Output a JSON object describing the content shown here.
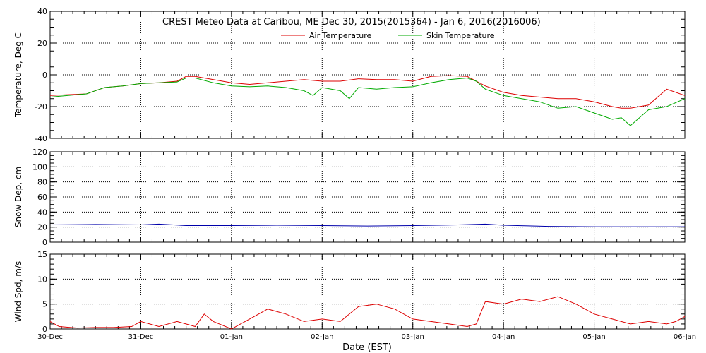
{
  "title": "CREST Meteo Data at Caribou, ME   Dec 30, 2015(2015364) - Jan  6, 2016(2016006)",
  "xlabel": "Date (EST)",
  "colors": {
    "air": "#dd0000",
    "skin": "#00aa00",
    "snow": "#0000aa",
    "wind": "#dd0000"
  },
  "chart_data": [
    {
      "type": "line",
      "x_unit": "days since 2015-12-30 00:00 EST",
      "x_ticks": [
        "30-Dec",
        "31-Dec",
        "01-Jan",
        "02-Jan",
        "03-Jan",
        "04-Jan",
        "05-Jan",
        "06-Jan"
      ],
      "ylabel": "Temperature, Deg C",
      "ylim": [
        -40,
        40
      ],
      "y_ticks": [
        "40",
        "20",
        "0",
        "-20",
        "-40"
      ],
      "grid": true,
      "legend": "top-center",
      "series": [
        {
          "name": "Air Temperature",
          "color": "#dd0000",
          "x": [
            0,
            0.2,
            0.4,
            0.6,
            0.8,
            1.0,
            1.2,
            1.4,
            1.5,
            1.6,
            1.8,
            2.0,
            2.2,
            2.4,
            2.6,
            2.8,
            3.0,
            3.2,
            3.4,
            3.6,
            3.8,
            4.0,
            4.2,
            4.4,
            4.6,
            4.7,
            4.8,
            5.0,
            5.2,
            5.4,
            5.6,
            5.8,
            6.0,
            6.2,
            6.3,
            6.4,
            6.6,
            6.8,
            7.0
          ],
          "values": [
            -13,
            -12.5,
            -12,
            -8,
            -7,
            -5.5,
            -5,
            -4,
            -1,
            -1,
            -3,
            -5,
            -6,
            -5,
            -4,
            -3,
            -4,
            -4,
            -2.5,
            -3,
            -3,
            -4,
            -1,
            -0.5,
            -1,
            -4,
            -7,
            -11,
            -13,
            -14,
            -15,
            -15,
            -17,
            -20,
            -21,
            -21,
            -19,
            -9,
            -13
          ]
        },
        {
          "name": "Skin Temperature",
          "color": "#00aa00",
          "x": [
            0,
            0.2,
            0.4,
            0.6,
            0.8,
            1.0,
            1.2,
            1.4,
            1.5,
            1.6,
            1.8,
            2.0,
            2.2,
            2.4,
            2.6,
            2.8,
            2.9,
            3.0,
            3.2,
            3.3,
            3.4,
            3.6,
            3.8,
            4.0,
            4.2,
            4.4,
            4.6,
            4.7,
            4.8,
            5.0,
            5.2,
            5.4,
            5.6,
            5.8,
            6.0,
            6.2,
            6.3,
            6.4,
            6.6,
            6.8,
            7.0
          ],
          "values": [
            -14,
            -13,
            -12,
            -8,
            -7,
            -5.5,
            -5,
            -4.5,
            -2,
            -2,
            -5,
            -7,
            -7.5,
            -7,
            -8,
            -10,
            -13,
            -8,
            -10,
            -15,
            -8,
            -9,
            -8,
            -7.5,
            -5,
            -3,
            -2,
            -4,
            -9,
            -13,
            -15,
            -17,
            -21,
            -20,
            -24,
            -28,
            -27,
            -32,
            -22,
            -20,
            -15
          ]
        }
      ]
    },
    {
      "type": "line",
      "ylabel": "Snow Dep, cm",
      "ylim": [
        0,
        120
      ],
      "y_ticks": [
        "120",
        "100",
        "80",
        "60",
        "40",
        "20",
        "0"
      ],
      "grid": true,
      "series": [
        {
          "color": "#0000aa",
          "x": [
            0,
            0.5,
            1.0,
            1.2,
            1.5,
            2.0,
            2.5,
            3.0,
            3.5,
            4.0,
            4.5,
            4.8,
            5.0,
            5.5,
            6.0,
            6.5,
            7.0
          ],
          "values": [
            23,
            23.5,
            23,
            24,
            22,
            22,
            22.5,
            22,
            21.5,
            22,
            23,
            24,
            22.5,
            21,
            20.5,
            20.5,
            20.5
          ]
        }
      ]
    },
    {
      "type": "line",
      "ylabel": "Wind Spd, m/s",
      "ylim": [
        0,
        15
      ],
      "y_ticks": [
        "15",
        "10",
        "5",
        "0"
      ],
      "grid": true,
      "series": [
        {
          "color": "#dd0000",
          "x": [
            0,
            0.1,
            0.3,
            0.5,
            0.7,
            0.9,
            1.0,
            1.2,
            1.4,
            1.6,
            1.7,
            1.8,
            2.0,
            2.2,
            2.4,
            2.6,
            2.8,
            3.0,
            3.2,
            3.4,
            3.6,
            3.8,
            4.0,
            4.2,
            4.4,
            4.6,
            4.7,
            4.8,
            5.0,
            5.2,
            5.4,
            5.6,
            5.8,
            6.0,
            6.2,
            6.4,
            6.6,
            6.8,
            6.9,
            7.0
          ],
          "values": [
            1.5,
            0.5,
            0.2,
            0.3,
            0.3,
            0.5,
            1.5,
            0.5,
            1.5,
            0.5,
            3,
            1.5,
            0,
            2,
            4,
            3,
            1.5,
            2,
            1.5,
            4.5,
            5,
            4,
            2,
            1.5,
            1,
            0.5,
            1,
            5.5,
            5,
            6,
            5.5,
            6.5,
            5,
            3,
            2,
            1,
            1.5,
            1,
            1.5,
            2.5
          ]
        }
      ]
    }
  ]
}
